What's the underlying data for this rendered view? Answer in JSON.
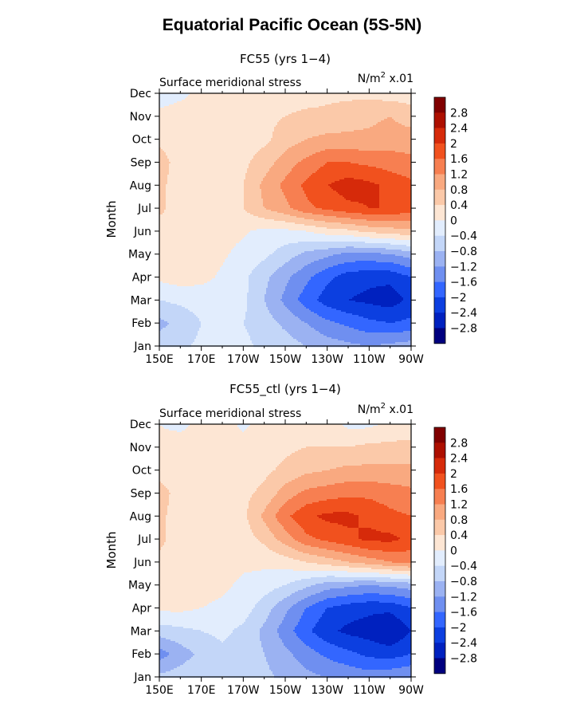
{
  "title": "Equatorial Pacific Ocean (5S-5N)",
  "chart_data": [
    {
      "type": "heatmap",
      "title": "FC55 (yrs 1−4)",
      "subtitle": "Surface meridional stress",
      "units": "N/m² x.01",
      "xlabel": "",
      "ylabel": "Month",
      "x_ticks": [
        "150E",
        "170E",
        "170W",
        "150W",
        "130W",
        "110W",
        "90W"
      ],
      "y_ticks": [
        "Jan",
        "Feb",
        "Mar",
        "Apr",
        "May",
        "Jun",
        "Jul",
        "Aug",
        "Sep",
        "Oct",
        "Nov",
        "Dec"
      ],
      "x": [
        150,
        160,
        170,
        180,
        190,
        200,
        210,
        220,
        230,
        240,
        250,
        260,
        270
      ],
      "months": [
        "Jan",
        "Feb",
        "Mar",
        "Apr",
        "May",
        "Jun",
        "Jul",
        "Aug",
        "Sep",
        "Oct",
        "Nov",
        "Dec"
      ],
      "values": [
        [
          -0.6,
          -0.5,
          -0.3,
          -0.2,
          -0.3,
          -0.5,
          -0.6,
          -0.8,
          -1.0,
          -1.1,
          -1.2,
          -1.1,
          -1.0
        ],
        [
          -0.9,
          -0.7,
          -0.4,
          -0.3,
          -0.4,
          -0.6,
          -0.9,
          -1.2,
          -1.5,
          -1.7,
          -1.9,
          -2.0,
          -1.9
        ],
        [
          -0.4,
          -0.3,
          -0.2,
          -0.2,
          -0.3,
          -0.8,
          -1.3,
          -1.8,
          -2.2,
          -2.4,
          -2.5,
          -2.6,
          -2.3
        ],
        [
          0.1,
          0.2,
          0.1,
          -0.05,
          -0.3,
          -0.7,
          -1.1,
          -1.5,
          -1.9,
          -2.2,
          -2.3,
          -2.3,
          -2.0
        ],
        [
          0.2,
          0.2,
          0.1,
          0.05,
          -0.1,
          -0.3,
          -0.6,
          -0.9,
          -1.1,
          -1.3,
          -1.3,
          -1.2,
          -1.0
        ],
        [
          0.2,
          0.2,
          0.2,
          0.1,
          0.05,
          -0.1,
          -0.1,
          0.0,
          0.2,
          0.3,
          0.5,
          0.6,
          0.7
        ],
        [
          0.5,
          0.2,
          0.2,
          0.2,
          0.4,
          0.8,
          1.1,
          1.5,
          1.7,
          1.9,
          2.0,
          2.0,
          1.8
        ],
        [
          0.5,
          0.2,
          0.2,
          0.2,
          0.4,
          0.9,
          1.3,
          1.7,
          2.0,
          2.2,
          2.1,
          1.9,
          1.7
        ],
        [
          0.6,
          0.2,
          0.2,
          0.2,
          0.3,
          0.6,
          1.0,
          1.3,
          1.6,
          1.6,
          1.5,
          1.4,
          1.3
        ],
        [
          0.3,
          0.2,
          0.2,
          0.2,
          0.2,
          0.3,
          0.6,
          0.8,
          0.9,
          0.9,
          0.9,
          1.0,
          1.0
        ],
        [
          0.1,
          0.2,
          0.2,
          0.2,
          0.2,
          0.3,
          0.4,
          0.5,
          0.5,
          0.6,
          0.7,
          0.8,
          0.6
        ],
        [
          -0.2,
          -0.1,
          0.1,
          0.2,
          0.2,
          0.2,
          0.2,
          0.2,
          0.3,
          0.3,
          0.3,
          0.2,
          0.2
        ]
      ],
      "colorbar_labels": [
        "2.8",
        "2.4",
        "2",
        "1.6",
        "1.2",
        "0.8",
        "0.4",
        "0",
        "−0.4",
        "−0.8",
        "−1.2",
        "−1.6",
        "−2",
        "−2.4",
        "−2.8"
      ]
    },
    {
      "type": "heatmap",
      "title": "FC55_ctl (yrs 1−4)",
      "subtitle": "Surface meridional stress",
      "units": "N/m² x.01",
      "xlabel": "",
      "ylabel": "Month",
      "x_ticks": [
        "150E",
        "170E",
        "170W",
        "150W",
        "130W",
        "110W",
        "90W"
      ],
      "y_ticks": [
        "Jan",
        "Feb",
        "Mar",
        "Apr",
        "May",
        "Jun",
        "Jul",
        "Aug",
        "Sep",
        "Oct",
        "Nov",
        "Dec"
      ],
      "x": [
        150,
        160,
        170,
        180,
        190,
        200,
        210,
        220,
        230,
        240,
        250,
        260,
        270
      ],
      "months": [
        "Jan",
        "Feb",
        "Mar",
        "Apr",
        "May",
        "Jun",
        "Jul",
        "Aug",
        "Sep",
        "Oct",
        "Nov",
        "Dec"
      ],
      "values": [
        [
          -0.7,
          -0.6,
          -0.5,
          -0.4,
          -0.5,
          -0.7,
          -0.9,
          -1.1,
          -1.2,
          -1.3,
          -1.4,
          -1.3,
          -1.2
        ],
        [
          -1.4,
          -1.0,
          -0.7,
          -0.5,
          -0.6,
          -0.8,
          -1.1,
          -1.4,
          -1.7,
          -1.9,
          -2.1,
          -2.2,
          -2.0
        ],
        [
          -0.6,
          -0.5,
          -0.4,
          -0.3,
          -0.5,
          -0.9,
          -1.4,
          -1.9,
          -2.3,
          -2.5,
          -2.6,
          -2.8,
          -2.4
        ],
        [
          0.1,
          0.1,
          0.0,
          -0.1,
          -0.2,
          -0.6,
          -1.1,
          -1.6,
          -2.0,
          -2.2,
          -2.3,
          -2.3,
          -2.0
        ],
        [
          0.2,
          0.2,
          0.2,
          0.1,
          -0.1,
          -0.2,
          -0.4,
          -0.7,
          -1.0,
          -1.1,
          -1.2,
          -1.1,
          -1.0
        ],
        [
          0.3,
          0.2,
          0.2,
          0.2,
          0.1,
          0.1,
          0.2,
          0.4,
          0.6,
          0.8,
          1.0,
          1.2,
          1.3
        ],
        [
          0.5,
          0.2,
          0.2,
          0.2,
          0.2,
          0.5,
          1.0,
          1.5,
          1.7,
          1.9,
          2.1,
          2.1,
          1.9
        ],
        [
          0.5,
          0.2,
          0.2,
          0.2,
          0.3,
          0.9,
          1.5,
          1.9,
          2.1,
          2.1,
          1.9,
          1.7,
          1.6
        ],
        [
          0.6,
          0.2,
          0.2,
          0.2,
          0.3,
          0.5,
          1.0,
          1.3,
          1.4,
          1.5,
          1.5,
          1.4,
          1.3
        ],
        [
          0.2,
          0.2,
          0.2,
          0.2,
          0.2,
          0.3,
          0.5,
          0.7,
          0.8,
          0.9,
          0.9,
          0.9,
          0.9
        ],
        [
          0.1,
          0.2,
          0.2,
          0.2,
          0.2,
          0.2,
          0.3,
          0.4,
          0.4,
          0.4,
          0.5,
          0.5,
          0.5
        ],
        [
          0.0,
          -0.1,
          0.1,
          0.2,
          -0.1,
          0.2,
          0.2,
          0.2,
          0.2,
          -0.1,
          -0.1,
          0.1,
          0.2
        ]
      ],
      "colorbar_labels": [
        "2.8",
        "2.4",
        "2",
        "1.6",
        "1.2",
        "0.8",
        "0.4",
        "0",
        "−0.4",
        "−0.8",
        "−1.2",
        "−1.6",
        "−2",
        "−2.4",
        "−2.8"
      ]
    }
  ],
  "colors": {
    "palette": [
      "#00007f",
      "#0021bf",
      "#0c3fe0",
      "#3366ff",
      "#6f8ff0",
      "#9bb2f2",
      "#c3d6f8",
      "#e2edfd",
      "#fde6d4",
      "#fbc9a9",
      "#f9a980",
      "#f77f51",
      "#f1511e",
      "#d62a0a",
      "#ad0f00",
      "#800000"
    ]
  }
}
